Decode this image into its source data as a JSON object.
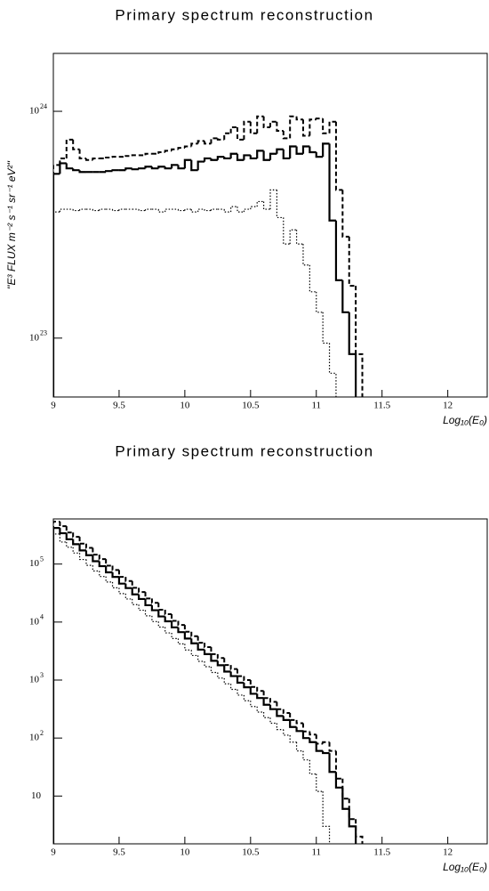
{
  "chart_data": [
    {
      "type": "histogram",
      "title": "Primary spectrum reconstruction",
      "x_label": "Log₁₀(E₀)",
      "y_label": "''E³ FLUX m⁻² s⁻¹ sr⁻¹ eV²''",
      "y_scale": "log",
      "xlim": [
        9,
        12.3
      ],
      "ylim": [
        5.5e+22,
        1.8e+24
      ],
      "xticks": [
        9,
        9.5,
        10,
        10.5,
        11,
        11.5,
        12
      ],
      "yticks": [
        {
          "value": 1e+23,
          "label": "10",
          "exponent": "23"
        },
        {
          "value": 1e+24,
          "label": "10",
          "exponent": "24"
        }
      ],
      "bins": [
        9,
        9.05,
        9.1,
        9.15,
        9.2,
        9.25,
        9.3,
        9.35,
        9.4,
        9.45,
        9.5,
        9.55,
        9.6,
        9.65,
        9.7,
        9.75,
        9.8,
        9.85,
        9.9,
        9.95,
        10,
        10.05,
        10.1,
        10.15,
        10.2,
        10.25,
        10.3,
        10.35,
        10.4,
        10.45,
        10.5,
        10.55,
        10.6,
        10.65,
        10.7,
        10.75,
        10.8,
        10.85,
        10.9,
        10.95,
        11,
        11.05,
        11.1,
        11.15,
        11.2,
        11.25,
        11.3,
        11.35,
        11.4
      ],
      "series": [
        {
          "color": "#000000",
          "line_style": "solid",
          "values": [
            5.3e+23,
            5.9e+23,
            5.6e+23,
            5.5e+23,
            5.4e+23,
            5.4e+23,
            5.4e+23,
            5.4e+23,
            5.45e+23,
            5.5e+23,
            5.5e+23,
            5.6e+23,
            5.55e+23,
            5.6e+23,
            5.7e+23,
            5.6e+23,
            5.7e+23,
            5.6e+23,
            5.8e+23,
            5.6e+23,
            6.1e+23,
            5.5e+23,
            6e+23,
            6.2e+23,
            6.1e+23,
            6.3e+23,
            6.2e+23,
            6.5e+23,
            6.1e+23,
            6.4e+23,
            6.2e+23,
            6.7e+23,
            6.1e+23,
            6.5e+23,
            6.8e+23,
            6.2e+23,
            7e+23,
            6.5e+23,
            7e+23,
            6.6e+23,
            6.3e+23,
            7.2e+23,
            3.3e+23,
            1.8e+23,
            1.3e+23,
            8.5e+22,
            null,
            null
          ]
        },
        {
          "color": "#000000",
          "line_style": "dashed",
          "values": [
            5.8e+23,
            6.2e+23,
            7.5e+23,
            6.8e+23,
            6.2e+23,
            6.1e+23,
            6.2e+23,
            6.2e+23,
            6.25e+23,
            6.3e+23,
            6.3e+23,
            6.35e+23,
            6.4e+23,
            6.4e+23,
            6.5e+23,
            6.5e+23,
            6.6e+23,
            6.7e+23,
            6.8e+23,
            6.9e+23,
            7e+23,
            7.2e+23,
            7.4e+23,
            7.2e+23,
            7.6e+23,
            7.5e+23,
            8e+23,
            8.5e+23,
            7.5e+23,
            9e+23,
            8e+23,
            9.5e+23,
            8.5e+23,
            9e+23,
            8.2e+23,
            7.6e+23,
            9.5e+23,
            9.2e+23,
            7.8e+23,
            9.2e+23,
            9.3e+23,
            8e+23,
            9e+23,
            4.5e+23,
            2.8e+23,
            1.7e+23,
            8.5e+22,
            null
          ]
        },
        {
          "color": "#000000",
          "line_style": "dotted",
          "values": [
            3.6e+23,
            3.7e+23,
            3.7e+23,
            3.65e+23,
            3.7e+23,
            3.7e+23,
            3.65e+23,
            3.7e+23,
            3.7e+23,
            3.65e+23,
            3.7e+23,
            3.7e+23,
            3.7e+23,
            3.65e+23,
            3.7e+23,
            3.7e+23,
            3.6e+23,
            3.7e+23,
            3.7e+23,
            3.65e+23,
            3.7e+23,
            3.6e+23,
            3.7e+23,
            3.65e+23,
            3.7e+23,
            3.7e+23,
            3.6e+23,
            3.8e+23,
            3.6e+23,
            3.7e+23,
            3.8e+23,
            4e+23,
            3.7e+23,
            4.5e+23,
            3.4e+23,
            2.6e+23,
            3e+23,
            2.6e+23,
            2.1e+23,
            1.6e+23,
            1.3e+23,
            9.5e+22,
            7e+22,
            null,
            null,
            null,
            null,
            null
          ]
        }
      ]
    },
    {
      "type": "histogram",
      "title": "Primary spectrum reconstruction",
      "x_label": "Log₁₀(E₀)",
      "y_scale": "log",
      "xlim": [
        9,
        12.3
      ],
      "ylim": [
        1.5,
        600000
      ],
      "xticks": [
        9,
        9.5,
        10,
        10.5,
        11,
        11.5,
        12
      ],
      "yticks": [
        10,
        {
          "value": 100,
          "label": "10",
          "exponent": "2"
        },
        {
          "value": 1000,
          "label": "10",
          "exponent": "3"
        },
        {
          "value": 10000,
          "label": "10",
          "exponent": "4"
        },
        {
          "value": 100000,
          "label": "10",
          "exponent": "5"
        }
      ],
      "bins": [
        9,
        9.05,
        9.1,
        9.15,
        9.2,
        9.25,
        9.3,
        9.35,
        9.4,
        9.45,
        9.5,
        9.55,
        9.6,
        9.65,
        9.7,
        9.75,
        9.8,
        9.85,
        9.9,
        9.95,
        10,
        10.05,
        10.1,
        10.15,
        10.2,
        10.25,
        10.3,
        10.35,
        10.4,
        10.45,
        10.5,
        10.55,
        10.6,
        10.65,
        10.7,
        10.75,
        10.8,
        10.85,
        10.9,
        10.95,
        11,
        11.05,
        11.1,
        11.15,
        11.2,
        11.25,
        11.3,
        11.35,
        11.4
      ],
      "series": [
        {
          "color": "#000000",
          "line_style": "solid",
          "values": [
            420000,
            340000,
            268000,
            220000,
            172000,
            142000,
            112000,
            92000,
            72000,
            60000,
            46000,
            38500,
            30000,
            25000,
            19500,
            16000,
            12500,
            10300,
            8100,
            6700,
            5200,
            4300,
            3350,
            2800,
            2150,
            1800,
            1400,
            1170,
            900,
            750,
            580,
            490,
            375,
            315,
            240,
            205,
            155,
            132,
            100,
            85,
            60,
            55,
            26,
            14,
            6,
            3,
            null,
            null
          ]
        },
        {
          "color": "#000000",
          "line_style": "dashed",
          "values": [
            540000,
            450000,
            350000,
            295000,
            225000,
            190000,
            145000,
            122000,
            94000,
            79000,
            60000,
            51000,
            39000,
            33000,
            25500,
            21500,
            16300,
            13700,
            10500,
            8900,
            6800,
            5700,
            4400,
            3700,
            2800,
            2400,
            1820,
            1550,
            1170,
            1000,
            760,
            650,
            490,
            420,
            315,
            270,
            205,
            180,
            130,
            115,
            80,
            85,
            60,
            20,
            9,
            4,
            2,
            null
          ]
        },
        {
          "color": "#000000",
          "line_style": "dotted",
          "values": [
            330000,
            240000,
            195000,
            155000,
            120000,
            95000,
            76000,
            61000,
            49000,
            39000,
            31000,
            25000,
            20000,
            16000,
            12800,
            10200,
            8200,
            6500,
            5200,
            4200,
            3300,
            2650,
            2100,
            1700,
            1350,
            1080,
            860,
            690,
            550,
            440,
            350,
            280,
            225,
            180,
            140,
            112,
            85,
            60,
            42,
            24,
            12,
            3,
            null,
            null,
            null,
            null,
            null,
            null
          ]
        }
      ]
    }
  ]
}
